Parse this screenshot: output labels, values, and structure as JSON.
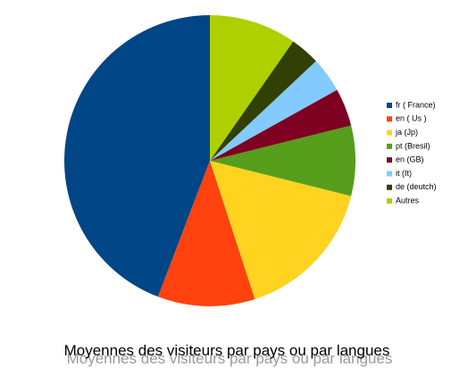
{
  "chart_data": {
    "type": "pie",
    "title": "Moyennes des visiteurs par pays ou par langues",
    "categories": [
      "fr ( France)",
      "en ( Us )",
      "ja (Jp)",
      "pt (Bresil)",
      "en (GB)",
      "it (It)",
      "de (deutch)",
      "Autres"
    ],
    "values": [
      44.2,
      10.8,
      16.1,
      7.8,
      4.2,
      3.9,
      3.3,
      9.7
    ],
    "colors": [
      "#004586",
      "#ff420e",
      "#ffd320",
      "#579d1c",
      "#7e0021",
      "#83caff",
      "#314004",
      "#aecf00"
    ],
    "legend": "right"
  }
}
